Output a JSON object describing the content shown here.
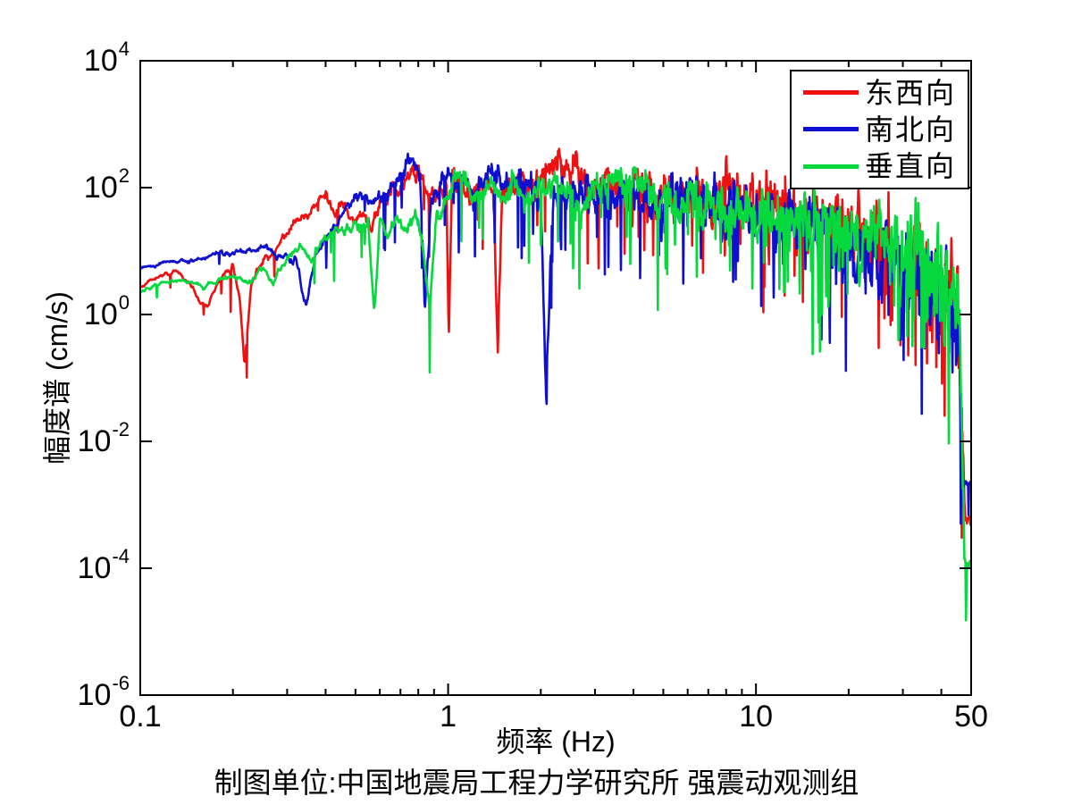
{
  "figure": {
    "background": "#ffffff",
    "caption": "制图单位:中国地震局工程力学研究所 强震动观测组"
  },
  "chart_data": {
    "type": "line",
    "title": "",
    "xlabel": "频率 (Hz)",
    "ylabel": "幅度谱 (cm/s)",
    "x_scale": "log",
    "y_scale": "log",
    "xlim": [
      0.1,
      50
    ],
    "ylim": [
      1e-06,
      10000
    ],
    "grid": false,
    "axis_color": "#000000",
    "x_ticks": {
      "major": [
        0.1,
        1,
        10,
        50
      ],
      "labels": [
        "0.1",
        "1",
        "10",
        "50"
      ],
      "minor": [
        0.2,
        0.3,
        0.4,
        0.5,
        0.6,
        0.7,
        0.8,
        0.9,
        2,
        3,
        4,
        5,
        6,
        7,
        8,
        9,
        20,
        30,
        40
      ]
    },
    "y_ticks": {
      "base": "10",
      "exponents": [
        "4",
        "2",
        "0",
        "-2",
        "-4",
        "-6"
      ],
      "exponent_values": [
        4,
        2,
        0,
        -2,
        -4,
        -6
      ]
    },
    "legend": {
      "position": "top-right",
      "border_color": "#000000",
      "background": "#ffffff"
    },
    "noise": {
      "samples": 1600,
      "sigma": [
        0.02,
        0.34
      ],
      "smooth": [
        0.93,
        0.55
      ],
      "spike_prob": [
        0.004,
        0.1
      ]
    },
    "series": [
      {
        "name": "东西向",
        "color": "#ee1111",
        "seed": 11,
        "anchors": [
          [
            0.1,
            2.8
          ],
          [
            0.115,
            4.2
          ],
          [
            0.13,
            4.8
          ],
          [
            0.145,
            3.0
          ],
          [
            0.155,
            1.6
          ],
          [
            0.165,
            1.3
          ],
          [
            0.175,
            2.6
          ],
          [
            0.19,
            4.5
          ],
          [
            0.2,
            5.5
          ],
          [
            0.21,
            2.0
          ],
          [
            0.218,
            0.18
          ],
          [
            0.23,
            3.5
          ],
          [
            0.25,
            7
          ],
          [
            0.28,
            12
          ],
          [
            0.32,
            28
          ],
          [
            0.36,
            50
          ],
          [
            0.4,
            68
          ],
          [
            0.43,
            35
          ],
          [
            0.45,
            55
          ],
          [
            0.47,
            40
          ],
          [
            0.5,
            25
          ],
          [
            0.53,
            45
          ],
          [
            0.56,
            18
          ],
          [
            0.6,
            55
          ],
          [
            0.65,
            80
          ],
          [
            0.7,
            120
          ],
          [
            0.75,
            160
          ],
          [
            0.8,
            170
          ],
          [
            0.85,
            100
          ],
          [
            0.9,
            65
          ],
          [
            0.95,
            120
          ],
          [
            0.985,
            130
          ],
          [
            1.005,
            0.5
          ],
          [
            1.03,
            120
          ],
          [
            1.1,
            130
          ],
          [
            1.2,
            75
          ],
          [
            1.3,
            130
          ],
          [
            1.4,
            110
          ],
          [
            1.45,
            0.3
          ],
          [
            1.5,
            80
          ],
          [
            1.6,
            120
          ],
          [
            1.8,
            95
          ],
          [
            2.0,
            140
          ],
          [
            2.2,
            260
          ],
          [
            2.4,
            180
          ],
          [
            2.6,
            230
          ],
          [
            2.8,
            100
          ],
          [
            3.0,
            80
          ],
          [
            3.3,
            130
          ],
          [
            3.6,
            90
          ],
          [
            4.0,
            120
          ],
          [
            4.4,
            80
          ],
          [
            4.8,
            60
          ],
          [
            5.2,
            80
          ],
          [
            5.6,
            70
          ],
          [
            6.0,
            90
          ],
          [
            6.5,
            70
          ],
          [
            7.0,
            80
          ],
          [
            7.5,
            90
          ],
          [
            8.0,
            100
          ],
          [
            8.5,
            70
          ],
          [
            9,
            60
          ],
          [
            10,
            55
          ],
          [
            11,
            50
          ],
          [
            12,
            60
          ],
          [
            13,
            40
          ],
          [
            14,
            50
          ],
          [
            16,
            30
          ],
          [
            18,
            28
          ],
          [
            20,
            22
          ],
          [
            23,
            15
          ],
          [
            26,
            12
          ],
          [
            30,
            9
          ],
          [
            34,
            6
          ],
          [
            38,
            4.5
          ],
          [
            42,
            3
          ],
          [
            44,
            1.5
          ],
          [
            45.5,
            0.4
          ],
          [
            46.5,
            0.03
          ],
          [
            47.2,
            0.003
          ],
          [
            47.8,
            0.0006
          ],
          [
            50,
            0.0006
          ]
        ]
      },
      {
        "name": "南北向",
        "color": "#0f0fd0",
        "seed": 23,
        "anchors": [
          [
            0.1,
            5.2
          ],
          [
            0.12,
            6.5
          ],
          [
            0.14,
            7.5
          ],
          [
            0.16,
            8
          ],
          [
            0.18,
            9
          ],
          [
            0.2,
            8.5
          ],
          [
            0.22,
            9.5
          ],
          [
            0.25,
            10
          ],
          [
            0.28,
            8
          ],
          [
            0.3,
            9
          ],
          [
            0.32,
            7
          ],
          [
            0.345,
            1.3
          ],
          [
            0.37,
            8
          ],
          [
            0.4,
            16
          ],
          [
            0.44,
            30
          ],
          [
            0.48,
            55
          ],
          [
            0.52,
            75
          ],
          [
            0.56,
            55
          ],
          [
            0.6,
            90
          ],
          [
            0.64,
            70
          ],
          [
            0.68,
            130
          ],
          [
            0.72,
            200
          ],
          [
            0.76,
            290
          ],
          [
            0.79,
            230
          ],
          [
            0.81,
            150
          ],
          [
            0.84,
            1.5
          ],
          [
            0.88,
            60
          ],
          [
            0.92,
            80
          ],
          [
            1.0,
            150
          ],
          [
            1.1,
            110
          ],
          [
            1.2,
            70
          ],
          [
            1.3,
            140
          ],
          [
            1.4,
            200
          ],
          [
            1.5,
            140
          ],
          [
            1.6,
            90
          ],
          [
            1.7,
            130
          ],
          [
            1.8,
            110
          ],
          [
            1.9,
            80
          ],
          [
            2.0,
            70
          ],
          [
            2.08,
            0.06
          ],
          [
            2.2,
            60
          ],
          [
            2.4,
            90
          ],
          [
            2.6,
            70
          ],
          [
            2.8,
            110
          ],
          [
            3.0,
            90
          ],
          [
            3.3,
            60
          ],
          [
            3.6,
            80
          ],
          [
            4.0,
            90
          ],
          [
            4.4,
            60
          ],
          [
            4.8,
            45
          ],
          [
            5.2,
            60
          ],
          [
            5.6,
            45
          ],
          [
            6.0,
            70
          ],
          [
            6.5,
            55
          ],
          [
            7,
            45
          ],
          [
            7.5,
            60
          ],
          [
            8,
            45
          ],
          [
            9,
            55
          ],
          [
            10,
            40
          ],
          [
            11,
            35
          ],
          [
            12,
            30
          ],
          [
            13,
            35
          ],
          [
            14,
            25
          ],
          [
            16,
            22
          ],
          [
            18,
            18
          ],
          [
            20,
            14
          ],
          [
            23,
            10
          ],
          [
            26,
            8
          ],
          [
            30,
            6
          ],
          [
            34,
            4
          ],
          [
            38,
            2.5
          ],
          [
            42,
            1.6
          ],
          [
            44,
            0.8
          ],
          [
            45.5,
            0.2
          ],
          [
            46.5,
            0.02
          ],
          [
            47.2,
            0.004
          ],
          [
            47.8,
            0.0022
          ],
          [
            50,
            0.0022
          ]
        ]
      },
      {
        "name": "垂直向",
        "color": "#06d83e",
        "seed": 47,
        "anchors": [
          [
            0.1,
            2.3
          ],
          [
            0.12,
            3.2
          ],
          [
            0.14,
            3.6
          ],
          [
            0.16,
            2.6
          ],
          [
            0.18,
            3.4
          ],
          [
            0.2,
            4.2
          ],
          [
            0.22,
            3.0
          ],
          [
            0.25,
            5.5
          ],
          [
            0.27,
            3.0
          ],
          [
            0.3,
            8
          ],
          [
            0.33,
            12
          ],
          [
            0.36,
            7
          ],
          [
            0.4,
            16
          ],
          [
            0.44,
            22
          ],
          [
            0.48,
            26
          ],
          [
            0.52,
            20
          ],
          [
            0.55,
            25
          ],
          [
            0.575,
            1.2
          ],
          [
            0.6,
            28
          ],
          [
            0.64,
            18
          ],
          [
            0.68,
            28
          ],
          [
            0.72,
            24
          ],
          [
            0.76,
            30
          ],
          [
            0.8,
            26
          ],
          [
            0.84,
            6
          ],
          [
            0.87,
            1.2
          ],
          [
            0.92,
            35
          ],
          [
            0.96,
            50
          ],
          [
            1.0,
            70
          ],
          [
            1.05,
            140
          ],
          [
            1.1,
            180
          ],
          [
            1.15,
            110
          ],
          [
            1.2,
            60
          ],
          [
            1.3,
            75
          ],
          [
            1.4,
            110
          ],
          [
            1.5,
            70
          ],
          [
            1.6,
            130
          ],
          [
            1.7,
            90
          ],
          [
            1.8,
            70
          ],
          [
            1.9,
            90
          ],
          [
            2.0,
            110
          ],
          [
            2.2,
            130
          ],
          [
            2.4,
            90
          ],
          [
            2.6,
            70
          ],
          [
            2.8,
            60
          ],
          [
            3.0,
            90
          ],
          [
            3.3,
            110
          ],
          [
            3.6,
            130
          ],
          [
            4.0,
            90
          ],
          [
            4.4,
            110
          ],
          [
            4.8,
            70
          ],
          [
            5.2,
            60
          ],
          [
            5.6,
            55
          ],
          [
            6,
            65
          ],
          [
            6.5,
            55
          ],
          [
            7,
            50
          ],
          [
            7.5,
            55
          ],
          [
            8,
            48
          ],
          [
            9,
            42
          ],
          [
            10,
            38
          ],
          [
            11,
            34
          ],
          [
            12,
            32
          ],
          [
            13,
            30
          ],
          [
            14,
            28
          ],
          [
            16,
            26
          ],
          [
            18,
            24
          ],
          [
            20,
            20
          ],
          [
            23,
            16
          ],
          [
            26,
            13
          ],
          [
            30,
            10
          ],
          [
            34,
            8
          ],
          [
            38,
            5.5
          ],
          [
            42,
            3.5
          ],
          [
            44,
            2
          ],
          [
            45.5,
            0.8
          ],
          [
            46.3,
            0.08
          ],
          [
            47,
            0.008
          ],
          [
            47.5,
            0.00014
          ],
          [
            47.9,
            0.00012
          ],
          [
            48.1,
            1.3e-05
          ],
          [
            48.4,
            0.00011
          ],
          [
            50,
            0.00012
          ]
        ]
      }
    ]
  }
}
